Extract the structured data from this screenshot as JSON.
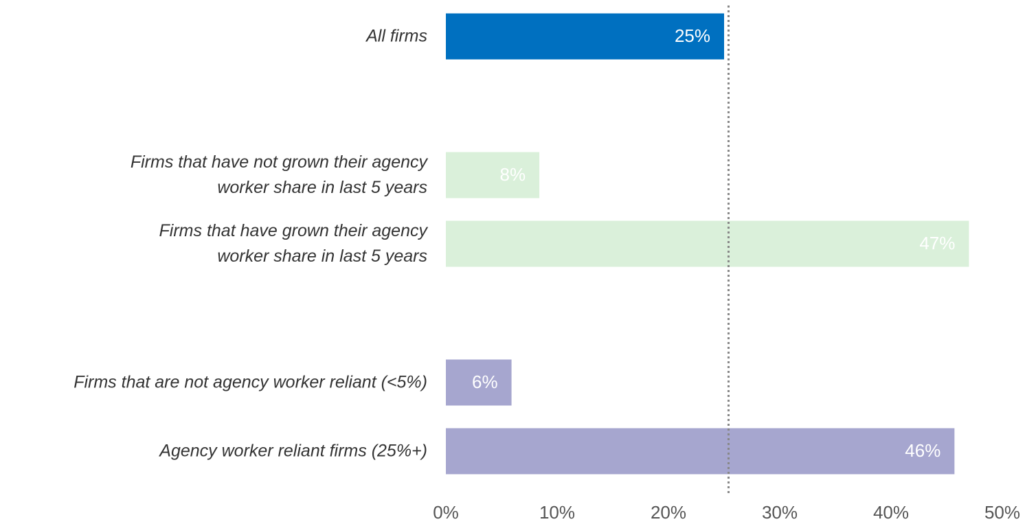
{
  "chart_data": {
    "type": "bar",
    "orientation": "horizontal",
    "categories": [
      "All firms",
      "Firms that have not grown their agency\nworker share in last 5 years",
      "Firms that have grown their agency\nworker share in last 5 years",
      "Firms that are not agency worker reliant (<5%)",
      "Agency worker reliant firms (25%+)"
    ],
    "values": [
      25,
      8.4,
      47,
      5.9,
      45.7
    ],
    "value_labels": [
      "25%",
      "8%",
      "47%",
      "6%",
      "46%"
    ],
    "colors": [
      "#0070c0",
      "#daf0da",
      "#daf0da",
      "#a6a6cf",
      "#a6a6cf"
    ],
    "xlim": [
      0,
      50
    ],
    "xticks": [
      {
        "value": 0,
        "label": "0%"
      },
      {
        "value": 10,
        "label": "10%"
      },
      {
        "value": 20,
        "label": "20%"
      },
      {
        "value": 30,
        "label": "30%"
      },
      {
        "value": 40,
        "label": "40%"
      },
      {
        "value": 50,
        "label": "50%"
      }
    ],
    "reference_line": 25.4
  }
}
